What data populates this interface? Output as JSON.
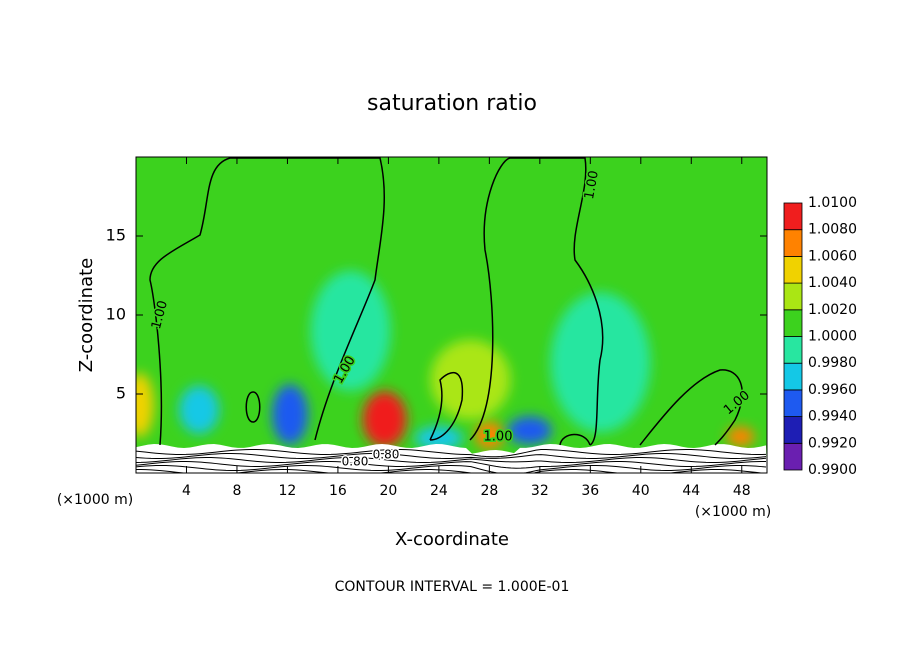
{
  "chart_data": {
    "type": "contour",
    "title": "saturation ratio",
    "x_label": "X-coordinate",
    "y_label": "Z-coordinate",
    "y_unit": "(×1000 m)",
    "x_unit": "(×1000 m)",
    "footnote": "CONTOUR INTERVAL = 1.000E-01",
    "xlim": [
      0,
      50
    ],
    "xticks": [
      4,
      8,
      12,
      16,
      20,
      24,
      28,
      32,
      36,
      40,
      44,
      48
    ],
    "ylim": [
      0,
      20
    ],
    "yticks": [
      5,
      10,
      15
    ],
    "colorbar": {
      "ticks": [
        {
          "value": 0.99,
          "label": "0.9900"
        },
        {
          "value": 0.992,
          "label": "0.9920"
        },
        {
          "value": 0.994,
          "label": "0.9940"
        },
        {
          "value": 0.996,
          "label": "0.9960"
        },
        {
          "value": 0.998,
          "label": "0.9980"
        },
        {
          "value": 1,
          "label": "1.0000"
        },
        {
          "value": 1.002,
          "label": "1.0020"
        },
        {
          "value": 1.004,
          "label": "1.0040"
        },
        {
          "value": 1.006,
          "label": "1.0060"
        },
        {
          "value": 1.008,
          "label": "1.0080"
        },
        {
          "value": 1.01,
          "label": "1.0100"
        }
      ],
      "colors": [
        "#6a1fb0",
        "#1e1eb4",
        "#1e5af0",
        "#14c8e6",
        "#28e6a0",
        "#3cd21e",
        "#aae614",
        "#f0d200",
        "#ff8200",
        "#f01e1e"
      ]
    },
    "contour_levels": [
      {
        "value": 1,
        "label": "1.00"
      },
      {
        "value": 0.8,
        "label": "0.80"
      }
    ],
    "field": [
      {
        "x": 0.3,
        "z": 4.3,
        "value": 1.004
      },
      {
        "x": 19.7,
        "z": 3.4,
        "value": 1.008
      },
      {
        "x": 12.2,
        "z": 3.7,
        "value": 0.995
      },
      {
        "x": 28,
        "z": 2.4,
        "value": 1.007
      },
      {
        "x": 31.2,
        "z": 2.7,
        "value": 0.994
      },
      {
        "x": 5,
        "z": 4,
        "value": 0.997
      },
      {
        "x": 17,
        "z": 9,
        "value": 0.999
      },
      {
        "x": 36.8,
        "z": 7,
        "value": 0.999
      },
      {
        "x": 47.9,
        "z": 2.3,
        "value": 1.006
      },
      {
        "x": 24,
        "z": 2.2,
        "value": 0.996
      },
      {
        "x": 26.5,
        "z": 5.9,
        "value": 1.002
      }
    ]
  }
}
